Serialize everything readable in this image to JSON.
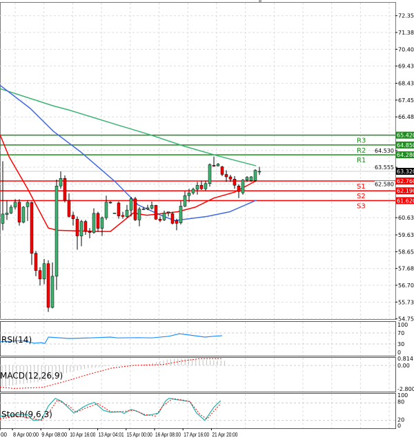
{
  "chart_data": {
    "type": "candlestick",
    "price_axis": {
      "ticks": [
        "72.355",
        "71.380",
        "70.405",
        "69.430",
        "68.430",
        "67.455",
        "66.480",
        "64.530",
        "63.555",
        "62.580",
        "60.630",
        "59.630",
        "58.655",
        "57.680",
        "56.705",
        "55.730",
        "54.755"
      ],
      "range": [
        54.755,
        72.355
      ]
    },
    "current_price": {
      "label": "63.320",
      "value": 63.32,
      "color": "#000000"
    },
    "levels": [
      {
        "name": "R3",
        "value": 65.42,
        "label": "65.420",
        "color": "#1e8c1e"
      },
      {
        "name": "R2",
        "value": 64.85,
        "label": "64.850",
        "color": "#1e8c1e"
      },
      {
        "name": "R1",
        "value": 64.28,
        "label": "64.280",
        "color": "#1e8c1e"
      },
      {
        "name": "S1",
        "value": 62.76,
        "label": "62.760",
        "color": "#ff0000"
      },
      {
        "name": "S2",
        "value": 62.19,
        "label": "62.190",
        "color": "#ff0000"
      },
      {
        "name": "S3",
        "value": 61.62,
        "label": "61.620",
        "color": "#ff0000"
      }
    ],
    "candles_ohlc": [
      [
        60.3,
        63.91,
        59.9,
        60.84
      ],
      [
        60.81,
        61.64,
        60.5,
        60.9
      ],
      [
        60.9,
        61.37,
        60.84,
        61.24
      ],
      [
        61.24,
        61.7,
        61.1,
        61.53
      ],
      [
        61.53,
        61.7,
        60.17,
        60.37
      ],
      [
        60.37,
        61.3,
        60.3,
        61.24
      ],
      [
        61.27,
        61.64,
        60.44,
        61.51
      ],
      [
        61.51,
        61.57,
        57.89,
        58.56
      ],
      [
        58.56,
        58.7,
        57.23,
        57.56
      ],
      [
        57.56,
        57.76,
        56.69,
        57.07
      ],
      [
        57.07,
        58.23,
        56.76,
        57.96
      ],
      [
        57.96,
        58.16,
        55.16,
        55.42
      ],
      [
        55.42,
        58.03,
        55.36,
        57.23
      ],
      [
        57.23,
        62.84,
        56.43,
        62.47
      ],
      [
        62.47,
        63.31,
        62.31,
        62.91
      ],
      [
        62.91,
        63.08,
        61.51,
        61.64
      ],
      [
        61.64,
        62.04,
        60.63,
        60.7
      ],
      [
        60.77,
        60.97,
        60.17,
        60.57
      ],
      [
        60.54,
        60.7,
        58.77,
        59.57
      ],
      [
        59.57,
        60.5,
        58.97,
        60.41
      ],
      [
        60.41,
        60.5,
        59.63,
        59.83
      ],
      [
        59.83,
        60.03,
        59.43,
        59.77
      ],
      [
        59.77,
        61.17,
        59.7,
        60.88
      ],
      [
        60.88,
        60.97,
        59.83,
        60.01
      ],
      [
        60.01,
        60.7,
        59.57,
        60.63
      ],
      [
        60.63,
        61.91,
        60.5,
        61.53
      ],
      [
        61.53,
        61.58,
        61.44,
        61.48
      ],
      [
        60.9,
        60.92,
        60.88,
        60.9
      ],
      [
        61.48,
        61.57,
        60.57,
        60.73
      ],
      [
        60.76,
        60.97,
        60.57,
        60.7
      ],
      [
        60.7,
        61.37,
        60.63,
        61.07
      ],
      [
        61.07,
        61.84,
        60.7,
        61.73
      ],
      [
        61.73,
        61.84,
        60.44,
        60.5
      ],
      [
        60.5,
        61.24,
        60.13,
        61.13
      ],
      [
        61.13,
        61.24,
        61.07,
        61.13
      ],
      [
        61.13,
        61.37,
        61.07,
        61.2
      ],
      [
        61.18,
        61.56,
        61.1,
        61.35
      ],
      [
        61.35,
        61.37,
        60.5,
        60.54
      ],
      [
        60.54,
        60.7,
        60.37,
        60.47
      ],
      [
        60.5,
        61.04,
        60.44,
        60.9
      ],
      [
        60.97,
        60.97,
        60.7,
        60.9
      ],
      [
        60.86,
        60.97,
        60.24,
        60.3
      ],
      [
        60.46,
        60.57,
        59.9,
        60.3
      ],
      [
        60.33,
        61.61,
        60.24,
        61.3
      ],
      [
        61.3,
        62.17,
        61.24,
        61.91
      ],
      [
        61.91,
        62.31,
        61.53,
        62.07
      ],
      [
        62.07,
        62.37,
        61.97,
        62.28
      ],
      [
        62.28,
        62.71,
        61.97,
        62.51
      ],
      [
        62.51,
        62.77,
        62.24,
        62.31
      ],
      [
        62.31,
        62.77,
        62.2,
        62.61
      ],
      [
        62.61,
        63.78,
        62.44,
        63.71
      ],
      [
        63.67,
        64.18,
        63.58,
        63.62
      ],
      [
        63.64,
        63.8,
        63.59,
        63.74
      ],
      [
        63.58,
        63.64,
        63.04,
        63.14
      ],
      [
        63.14,
        63.38,
        62.71,
        63.0
      ],
      [
        63.0,
        63.11,
        62.71,
        62.87
      ],
      [
        62.87,
        63.04,
        62.31,
        62.51
      ],
      [
        62.47,
        62.57,
        61.77,
        62.15
      ],
      [
        62.07,
        62.87,
        61.97,
        62.81
      ],
      [
        62.81,
        63.04,
        62.71,
        62.97
      ],
      [
        62.79,
        63.04,
        62.71,
        63.0
      ],
      [
        62.79,
        63.44,
        62.71,
        63.38
      ],
      [
        63.32,
        63.58,
        63.11,
        63.32
      ]
    ],
    "moving_averages": [
      {
        "name": "slow-ma",
        "color": "#3cb371",
        "points": [
          [
            -0.67,
            68.12
          ],
          [
            12.2,
            67.12
          ],
          [
            16,
            66.88
          ],
          [
            27.2,
            66.05
          ],
          [
            35.5,
            65.45
          ],
          [
            43.8,
            64.78
          ],
          [
            52.2,
            64.2
          ],
          [
            61.2,
            63.64
          ]
        ]
      },
      {
        "name": "mid-ma",
        "color": "#4169e1",
        "points": [
          [
            -0.67,
            68.32
          ],
          [
            6.6,
            66.98
          ],
          [
            12.2,
            65.65
          ],
          [
            18.8,
            64.45
          ],
          [
            27.2,
            62.71
          ],
          [
            32.7,
            61.37
          ],
          [
            38.2,
            60.77
          ],
          [
            41.5,
            60.46
          ],
          [
            49.3,
            60.7
          ],
          [
            54.8,
            60.97
          ],
          [
            61.2,
            61.64
          ]
        ]
      },
      {
        "name": "fast-ma",
        "color": "#ff0000",
        "points": [
          [
            -0.67,
            65.45
          ],
          [
            1.5,
            64.18
          ],
          [
            6,
            62.31
          ],
          [
            11,
            60.03
          ],
          [
            13.2,
            59.9
          ],
          [
            22.7,
            59.83
          ],
          [
            26,
            59.83
          ],
          [
            31.5,
            60.9
          ],
          [
            34.8,
            60.77
          ],
          [
            42.2,
            60.97
          ],
          [
            46.5,
            61.24
          ],
          [
            51,
            61.77
          ],
          [
            56,
            62.11
          ],
          [
            61.2,
            62.77
          ]
        ]
      }
    ],
    "rsi": {
      "label": "RSI(14)",
      "color": "#1e90ff",
      "ticks": [
        "100",
        "70",
        "30",
        "0"
      ],
      "tick_values": [
        100,
        70,
        30,
        0
      ],
      "points": [
        [
          0,
          38
        ],
        [
          5.8,
          42
        ],
        [
          7.7,
          38
        ],
        [
          9.6,
          33
        ],
        [
          11.5,
          35
        ],
        [
          12.5,
          32
        ],
        [
          13.5,
          55
        ],
        [
          19.2,
          50
        ],
        [
          25,
          52
        ],
        [
          30.8,
          55
        ],
        [
          32.7,
          52
        ],
        [
          38.5,
          53
        ],
        [
          42.3,
          52
        ],
        [
          47.1,
          58
        ],
        [
          50,
          67
        ],
        [
          51.9,
          64
        ],
        [
          57.1,
          55
        ],
        [
          59.6,
          58
        ],
        [
          61.9,
          60
        ]
      ]
    },
    "macd": {
      "label": "MACD(12,26,9)",
      "ticks": [
        "0.814",
        "0.00",
        "-2.8009"
      ],
      "tick_values": [
        0.814,
        0,
        -2.8009
      ],
      "histogram": [
        -2.5,
        -2.5,
        -2.4,
        -2.4,
        -2.3,
        -2.2,
        -2.2,
        -2.1,
        -2.1,
        -2.0,
        -2.0,
        -1.9,
        -1.8,
        -1.6,
        -1.5,
        -1.3,
        -1.2,
        -1.0,
        -0.9,
        -0.8,
        -0.7,
        -0.6,
        -0.5,
        -0.4,
        -0.35,
        -0.3,
        -0.25,
        -0.2,
        -0.15,
        -0.1,
        -0.05,
        0,
        0,
        0.02,
        0.05,
        0.05,
        0.08,
        0.1,
        0.1,
        0.12,
        0.15,
        0.2,
        0.3,
        0.4,
        0.5,
        0.6,
        0.7,
        0.75,
        0.8,
        0.8,
        0.8,
        0.8,
        0.78,
        0.75,
        0.72,
        0.7,
        0.68,
        0.65,
        0.62,
        0.6,
        0.6,
        0.58,
        0.55
      ],
      "signal": [
        [
          0,
          -2.6
        ],
        [
          4.6,
          -2.75
        ],
        [
          11.5,
          -2.65
        ],
        [
          13.8,
          -2.6
        ],
        [
          20.8,
          -1.9
        ],
        [
          28.8,
          -1.0
        ],
        [
          35.8,
          -0.3
        ],
        [
          42.7,
          0
        ],
        [
          51.9,
          0.1
        ],
        [
          57.7,
          0.5
        ],
        [
          63.4,
          0.8
        ],
        [
          70.5,
          0.8
        ]
      ],
      "histogram_color": "#c0c0c0",
      "signal_color": "#ff0000"
    },
    "stochastic": {
      "label": "Stoch(9,6,3)",
      "ticks": [
        "100",
        "80",
        "20",
        "0"
      ],
      "tick_values": [
        100,
        80,
        20,
        0
      ],
      "main_color": "#20b2aa",
      "signal_color": "#ff0000",
      "main": [
        [
          0,
          35
        ],
        [
          4.8,
          40
        ],
        [
          7.7,
          40
        ],
        [
          9.2,
          20
        ],
        [
          11.5,
          22
        ],
        [
          13.5,
          70
        ],
        [
          15.4,
          96
        ],
        [
          17.3,
          85
        ],
        [
          20.6,
          45
        ],
        [
          23.1,
          65
        ],
        [
          24.6,
          75
        ],
        [
          26.3,
          82
        ],
        [
          28.8,
          55
        ],
        [
          30.8,
          48
        ],
        [
          33.7,
          50
        ],
        [
          34.6,
          44
        ],
        [
          36.5,
          58
        ],
        [
          38.5,
          50
        ],
        [
          40.4,
          37
        ],
        [
          42.3,
          40
        ],
        [
          44.2,
          45
        ],
        [
          46.2,
          88
        ],
        [
          47.1,
          96
        ],
        [
          49,
          92
        ],
        [
          52.9,
          85
        ],
        [
          54.8,
          45
        ],
        [
          57.1,
          20
        ],
        [
          59.6,
          65
        ],
        [
          61.5,
          88
        ]
      ],
      "signal": [
        [
          0,
          25
        ],
        [
          4.8,
          35
        ],
        [
          9.6,
          25
        ],
        [
          11.5,
          20
        ],
        [
          13.8,
          50
        ],
        [
          16,
          90
        ],
        [
          19.2,
          70
        ],
        [
          21.2,
          48
        ],
        [
          24.4,
          65
        ],
        [
          27.3,
          78
        ],
        [
          30.8,
          50
        ],
        [
          33.7,
          50
        ],
        [
          37.5,
          55
        ],
        [
          40.4,
          40
        ],
        [
          43.3,
          35
        ],
        [
          45.4,
          70
        ],
        [
          48.1,
          95
        ],
        [
          51,
          90
        ],
        [
          52.9,
          85
        ],
        [
          55.8,
          40
        ],
        [
          57.7,
          25
        ],
        [
          61.5,
          78
        ]
      ]
    },
    "time_labels": [
      "00",
      "8 Apr 00:00",
      "9 Apr 08:00",
      "10 Apr 16:00",
      "13 Apr 04:01",
      "15 Apr 00:00",
      "16 Apr 08:00",
      "17 Apr 16:00",
      "21 Apr 20:00"
    ],
    "bull_color": "#3cb371",
    "bear_color": "#ff0000"
  }
}
